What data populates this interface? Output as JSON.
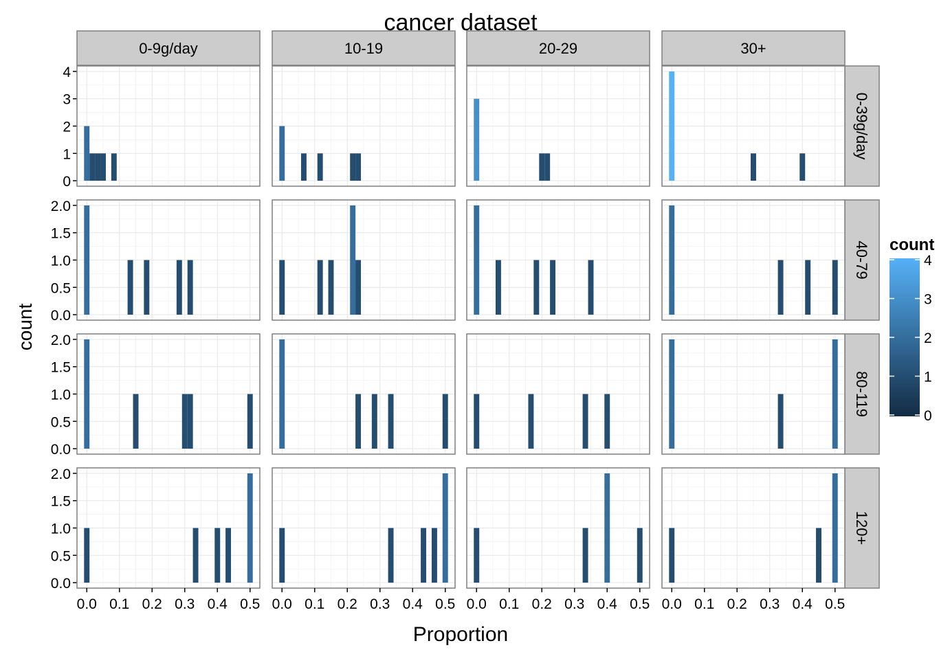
{
  "chart_data": {
    "type": "bar",
    "title": "cancer dataset",
    "xlabel": "Proportion",
    "ylabel": "count",
    "xlim": [
      -0.03,
      0.53
    ],
    "xticks": [
      "0.0",
      "0.1",
      "0.2",
      "0.3",
      "0.4",
      "0.5"
    ],
    "bin_width": 0.0167,
    "col_facets": [
      "0-9g/day",
      "10-19",
      "20-29",
      "30+"
    ],
    "row_facets": [
      "0-39g/day",
      "40-79",
      "80-119",
      "120+"
    ],
    "rows": [
      {
        "label": "0-39g/day",
        "ylim": [
          -0.2,
          4.2
        ],
        "yticks": [
          "0",
          "1",
          "2",
          "3",
          "4"
        ],
        "ytick_values": [
          0,
          1,
          2,
          3,
          4
        ],
        "panels": [
          [
            {
              "x": 0.0,
              "count": 2
            },
            {
              "x": 0.0167,
              "count": 1
            },
            {
              "x": 0.0333,
              "count": 1
            },
            {
              "x": 0.05,
              "count": 1
            },
            {
              "x": 0.0833,
              "count": 1
            }
          ],
          [
            {
              "x": 0.0,
              "count": 2
            },
            {
              "x": 0.0667,
              "count": 1
            },
            {
              "x": 0.1167,
              "count": 1
            },
            {
              "x": 0.2167,
              "count": 1
            },
            {
              "x": 0.2333,
              "count": 1
            }
          ],
          [
            {
              "x": 0.0,
              "count": 3
            },
            {
              "x": 0.2,
              "count": 1
            },
            {
              "x": 0.2167,
              "count": 1
            }
          ],
          [
            {
              "x": 0.0,
              "count": 4
            },
            {
              "x": 0.25,
              "count": 1
            },
            {
              "x": 0.4,
              "count": 1
            }
          ]
        ]
      },
      {
        "label": "40-79",
        "ylim": [
          -0.1,
          2.1
        ],
        "yticks": [
          "0.0",
          "0.5",
          "1.0",
          "1.5",
          "2.0"
        ],
        "ytick_values": [
          0,
          0.5,
          1,
          1.5,
          2
        ],
        "panels": [
          [
            {
              "x": 0.0,
              "count": 2
            },
            {
              "x": 0.1333,
              "count": 1
            },
            {
              "x": 0.1833,
              "count": 1
            },
            {
              "x": 0.2833,
              "count": 1
            },
            {
              "x": 0.3167,
              "count": 1
            }
          ],
          [
            {
              "x": 0.0,
              "count": 1
            },
            {
              "x": 0.1167,
              "count": 1
            },
            {
              "x": 0.15,
              "count": 1
            },
            {
              "x": 0.2167,
              "count": 2
            },
            {
              "x": 0.2333,
              "count": 1
            }
          ],
          [
            {
              "x": 0.0,
              "count": 2
            },
            {
              "x": 0.0667,
              "count": 1
            },
            {
              "x": 0.1833,
              "count": 1
            },
            {
              "x": 0.2333,
              "count": 1
            },
            {
              "x": 0.35,
              "count": 1
            }
          ],
          [
            {
              "x": 0.0,
              "count": 2
            },
            {
              "x": 0.3333,
              "count": 1
            },
            {
              "x": 0.4167,
              "count": 1
            },
            {
              "x": 0.5,
              "count": 1
            }
          ]
        ]
      },
      {
        "label": "80-119",
        "ylim": [
          -0.1,
          2.1
        ],
        "yticks": [
          "0.0",
          "0.5",
          "1.0",
          "1.5",
          "2.0"
        ],
        "ytick_values": [
          0,
          0.5,
          1,
          1.5,
          2
        ],
        "panels": [
          [
            {
              "x": 0.0,
              "count": 2
            },
            {
              "x": 0.15,
              "count": 1
            },
            {
              "x": 0.3,
              "count": 1
            },
            {
              "x": 0.3167,
              "count": 1
            },
            {
              "x": 0.5,
              "count": 1
            }
          ],
          [
            {
              "x": 0.0,
              "count": 2
            },
            {
              "x": 0.2333,
              "count": 1
            },
            {
              "x": 0.2833,
              "count": 1
            },
            {
              "x": 0.3333,
              "count": 1
            },
            {
              "x": 0.5,
              "count": 1
            }
          ],
          [
            {
              "x": 0.0,
              "count": 1
            },
            {
              "x": 0.1667,
              "count": 1
            },
            {
              "x": 0.3333,
              "count": 1
            },
            {
              "x": 0.4,
              "count": 1
            }
          ],
          [
            {
              "x": 0.0,
              "count": 2
            },
            {
              "x": 0.3333,
              "count": 1
            },
            {
              "x": 0.5,
              "count": 2
            }
          ]
        ]
      },
      {
        "label": "120+",
        "ylim": [
          -0.1,
          2.1
        ],
        "yticks": [
          "0.0",
          "0.5",
          "1.0",
          "1.5",
          "2.0"
        ],
        "ytick_values": [
          0,
          0.5,
          1,
          1.5,
          2
        ],
        "panels": [
          [
            {
              "x": 0.0,
              "count": 1
            },
            {
              "x": 0.3333,
              "count": 1
            },
            {
              "x": 0.4,
              "count": 1
            },
            {
              "x": 0.4333,
              "count": 1
            },
            {
              "x": 0.5,
              "count": 2
            }
          ],
          [
            {
              "x": 0.0,
              "count": 1
            },
            {
              "x": 0.3333,
              "count": 1
            },
            {
              "x": 0.4333,
              "count": 1
            },
            {
              "x": 0.4667,
              "count": 1
            },
            {
              "x": 0.5,
              "count": 2
            }
          ],
          [
            {
              "x": 0.0,
              "count": 1
            },
            {
              "x": 0.3333,
              "count": 1
            },
            {
              "x": 0.4,
              "count": 2
            },
            {
              "x": 0.5,
              "count": 1
            }
          ],
          [
            {
              "x": 0.0,
              "count": 1
            },
            {
              "x": 0.45,
              "count": 1
            },
            {
              "x": 0.5,
              "count": 2
            }
          ]
        ]
      }
    ],
    "legend": {
      "title": "count",
      "position": "right",
      "labels": [
        "4",
        "3",
        "2",
        "1",
        "0"
      ],
      "values": [
        4,
        3,
        2,
        1,
        0
      ],
      "range": [
        0,
        4
      ],
      "color_low": "#132B43",
      "color_high": "#56B1F7"
    }
  }
}
